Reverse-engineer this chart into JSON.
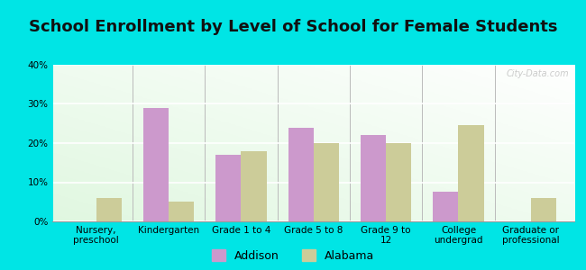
{
  "title": "School Enrollment by Level of School for Female Students",
  "categories": [
    "Nursery,\npreschool",
    "Kindergarten",
    "Grade 1 to 4",
    "Grade 5 to 8",
    "Grade 9 to\n12",
    "College\nundergrad",
    "Graduate or\nprofessional"
  ],
  "addison": [
    0.0,
    29.0,
    17.0,
    24.0,
    22.0,
    7.5,
    0.0
  ],
  "alabama": [
    6.0,
    5.0,
    18.0,
    20.0,
    20.0,
    24.5,
    6.0
  ],
  "addison_color": "#cc99cc",
  "alabama_color": "#cccc99",
  "background_color": "#00e5e5",
  "ylim": [
    0,
    40
  ],
  "yticks": [
    0,
    10,
    20,
    30,
    40
  ],
  "ytick_labels": [
    "0%",
    "10%",
    "20%",
    "30%",
    "40%"
  ],
  "bar_width": 0.35,
  "legend_labels": [
    "Addison",
    "Alabama"
  ],
  "watermark": "City-Data.com",
  "title_fontsize": 13,
  "axis_fontsize": 7.5,
  "legend_fontsize": 9,
  "grid_color": "#dddddd"
}
